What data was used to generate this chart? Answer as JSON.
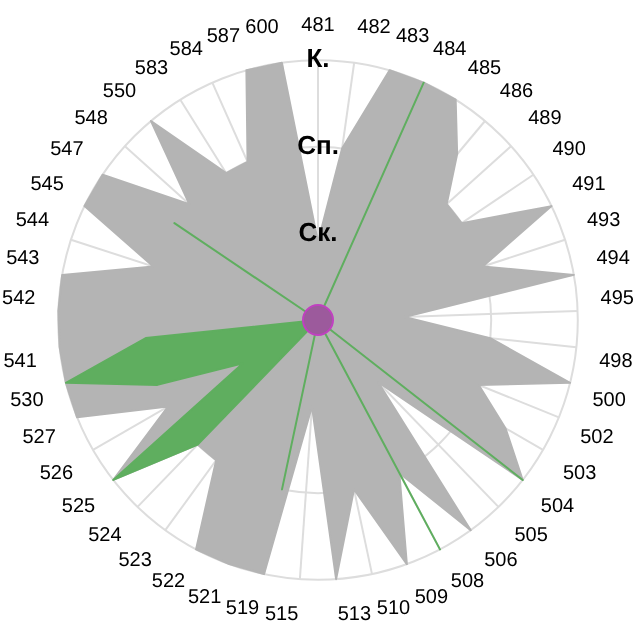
{
  "chart_data": {
    "type": "radar",
    "categories": [
      "481",
      "482",
      "483",
      "484",
      "485",
      "486",
      "489",
      "490",
      "491",
      "493",
      "494",
      "495",
      "498",
      "500",
      "502",
      "503",
      "504",
      "505",
      "506",
      "508",
      "509",
      "510",
      "513",
      "515",
      "519",
      "521",
      "522",
      "523",
      "524",
      "525",
      "526",
      "527",
      "530",
      "541",
      "542",
      "543",
      "544",
      "545",
      "547",
      "548",
      "550",
      "583",
      "584",
      "587",
      "600"
    ],
    "series": [
      {
        "color": "#b4b4b4",
        "values": [
          0.9,
          2,
          3,
          3,
          3,
          2.5,
          2,
          2,
          3,
          2,
          3,
          1,
          2,
          3,
          2,
          2.5,
          3,
          1,
          3,
          2,
          3,
          2,
          3,
          1,
          3,
          3,
          3,
          2,
          2,
          3,
          2,
          3,
          3,
          3,
          3,
          3,
          2,
          3,
          3,
          2,
          3,
          2,
          2,
          3,
          3
        ]
      },
      {
        "color": "#5fae5f",
        "values": [
          0,
          0,
          0,
          3,
          0,
          0,
          0,
          0,
          0,
          0,
          0,
          0,
          0,
          0,
          0,
          0,
          3,
          0,
          0,
          3,
          0,
          0,
          0,
          0,
          2,
          0,
          0,
          0,
          2,
          3,
          1,
          2,
          3,
          2,
          0,
          0,
          0,
          0,
          2,
          0,
          0,
          0,
          0,
          0,
          0
        ]
      }
    ],
    "ylim": [
      0,
      3
    ],
    "yticks": [
      {
        "value": 1,
        "label": "Ск."
      },
      {
        "value": 2,
        "label": "Сп."
      },
      {
        "value": 3,
        "label": "К."
      }
    ],
    "grid": true,
    "legend": false,
    "marker": "none"
  }
}
